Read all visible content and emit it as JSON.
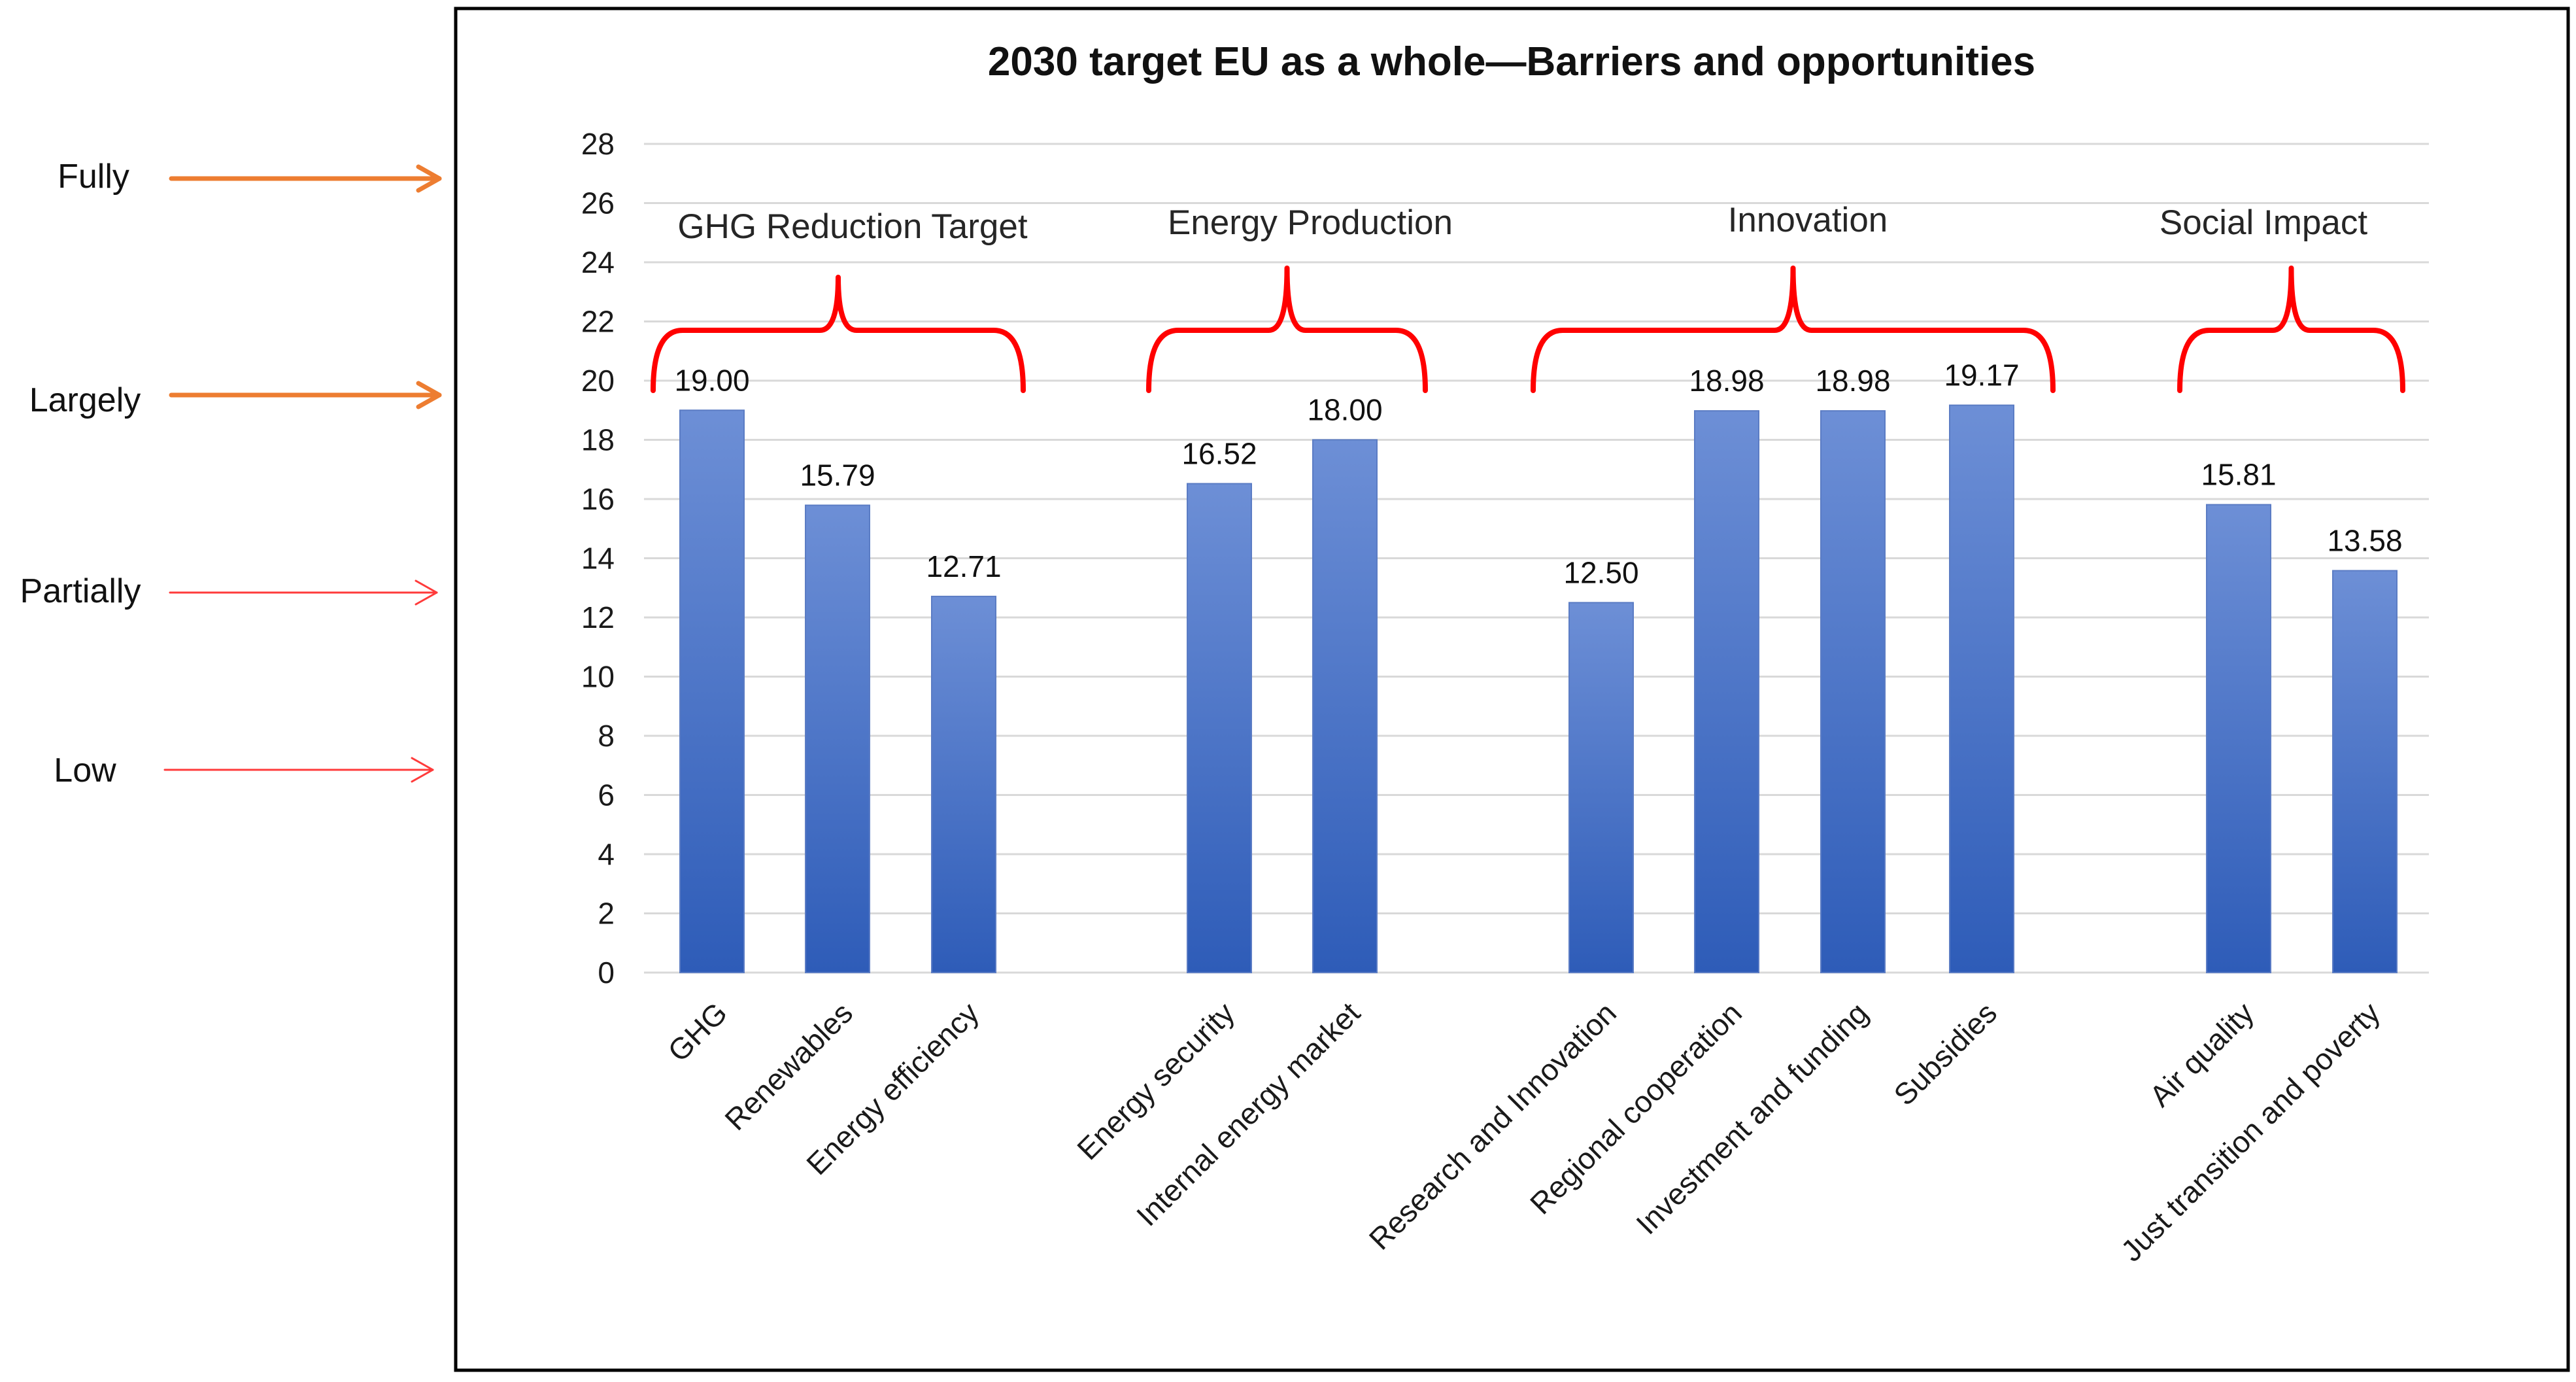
{
  "chart_data": {
    "type": "bar",
    "title": "2030 target EU as a whole—Barriers and opportunities",
    "xlabel": "",
    "ylabel": "",
    "ylim": [
      0,
      28
    ],
    "yticks": [
      0,
      2,
      4,
      6,
      8,
      10,
      12,
      14,
      16,
      18,
      20,
      22,
      24,
      26,
      28
    ],
    "grid": true,
    "legend": "none",
    "categories": [
      "GHG",
      "Renewables",
      "Energy efficiency",
      "Energy security",
      "Internal energy market",
      "Research and Innovation",
      "Regional cooperation",
      "Investment and funding",
      "Subsidies",
      "Air quality",
      "Just  transition and poverty"
    ],
    "values": [
      19.0,
      15.79,
      12.71,
      16.52,
      18.0,
      12.5,
      18.98,
      18.98,
      19.17,
      15.81,
      13.58
    ],
    "value_labels": [
      "19.00",
      "15.79",
      "12.71",
      "16.52",
      "18.00",
      "12.50",
      "18.98",
      "18.98",
      "19.17",
      "15.81",
      "13.58"
    ],
    "groups": [
      {
        "name": "GHG Reduction Target",
        "members": [
          "GHG",
          "Renewables",
          "Energy efficiency"
        ]
      },
      {
        "name": "Energy Production",
        "members": [
          "Energy security",
          "Internal energy market"
        ]
      },
      {
        "name": "Innovation",
        "members": [
          "Research and Innovation",
          "Regional cooperation",
          "Investment and funding",
          "Subsidies"
        ]
      },
      {
        "name": "Social Impact",
        "members": [
          "Air quality",
          "Just  transition and poverty"
        ]
      }
    ],
    "annotations": [
      {
        "label": "Fully",
        "y": 27,
        "arrow_color": "#ED7D31"
      },
      {
        "label": "Largely",
        "y": 19.5,
        "arrow_color": "#ED7D31"
      },
      {
        "label": "Partially",
        "y": 12.8,
        "arrow_color": "#FF3B3B"
      },
      {
        "label": "Low",
        "y": 6.8,
        "arrow_color": "#FF3B3B"
      }
    ],
    "colors": {
      "bar_top": "#6D8FD6",
      "bar_bottom": "#2E5CB8",
      "bracket": "#FF0000",
      "grid": "#D9D9D9",
      "frame": "#000000"
    }
  }
}
